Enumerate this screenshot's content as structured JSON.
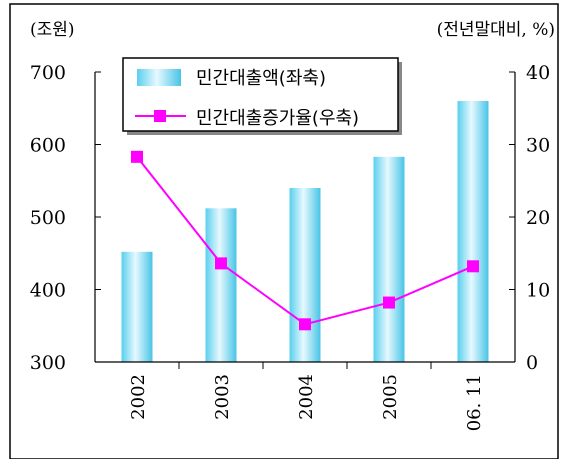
{
  "chart_data": {
    "type": "bar+line",
    "categories": [
      "2002",
      "2003",
      "2004",
      "2005",
      "06. 11"
    ],
    "left_unit": "(조원)",
    "right_unit": "(전년말대비, %)",
    "left_axis": {
      "min": 300,
      "max": 700,
      "ticks": [
        300,
        400,
        500,
        600,
        700
      ]
    },
    "right_axis": {
      "min": 0,
      "max": 40,
      "ticks": [
        0,
        10,
        20,
        30,
        40
      ]
    },
    "series": [
      {
        "name": "민간대출액(좌축)",
        "type": "bar",
        "axis": "left",
        "values": [
          452,
          512,
          540,
          583,
          660
        ]
      },
      {
        "name": "민간대출증가율(우축)",
        "type": "line",
        "axis": "right",
        "values": [
          28.3,
          13.6,
          5.2,
          8.2,
          13.2
        ]
      }
    ],
    "bar_color": "#5fd2ee",
    "line_color": "#ff00ff"
  }
}
